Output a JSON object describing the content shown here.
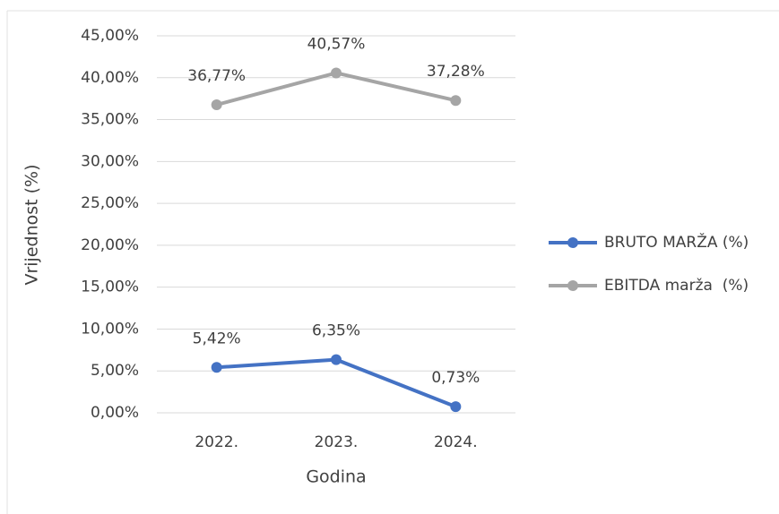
{
  "chart_data": {
    "type": "line",
    "categories": [
      "2022.",
      "2023.",
      "2024."
    ],
    "series": [
      {
        "name": "BRUTO MARŽA (%)",
        "color": "#4472c4",
        "values": [
          5.42,
          6.35,
          0.73
        ],
        "value_labels": [
          "5,42%",
          "6,35%",
          "0,73%"
        ]
      },
      {
        "name": "EBITDA marža  (%)",
        "color": "#a5a5a5",
        "values": [
          36.77,
          40.57,
          37.28
        ],
        "value_labels": [
          "36,77%",
          "40,57%",
          "37,28%"
        ]
      }
    ],
    "ylim": [
      0,
      45
    ],
    "yticks": [
      {
        "value": 0,
        "label": "0,00%"
      },
      {
        "value": 5,
        "label": "5,00%"
      },
      {
        "value": 10,
        "label": "10,00%"
      },
      {
        "value": 15,
        "label": "15,00%"
      },
      {
        "value": 20,
        "label": "20,00%"
      },
      {
        "value": 25,
        "label": "25,00%"
      },
      {
        "value": 30,
        "label": "30,00%"
      },
      {
        "value": 35,
        "label": "35,00%"
      },
      {
        "value": 40,
        "label": "40,00%"
      },
      {
        "value": 45,
        "label": "45,00%"
      }
    ],
    "ylabel": "Vrijednost (%)",
    "xlabel": "Godina",
    "grid": true,
    "legend": "right"
  }
}
